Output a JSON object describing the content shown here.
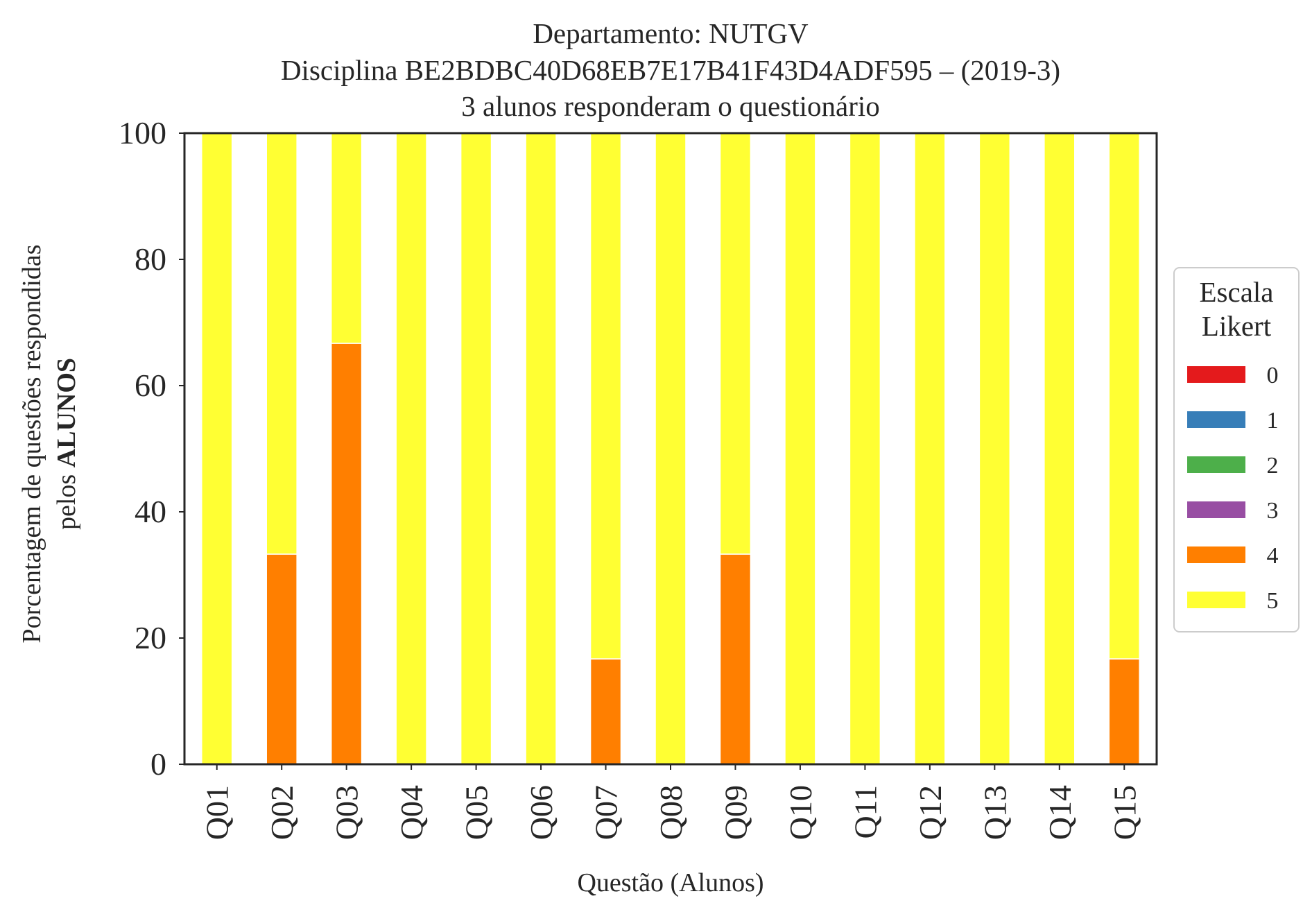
{
  "chart_data": {
    "type": "bar",
    "stacked": true,
    "title_lines": [
      "Departamento: NUTGV",
      "Disciplina BE2BDBC40D68EB7E17B41F43D4ADF595 – (2019-3)",
      "3 alunos responderam o questionário"
    ],
    "xlabel": "Questão (Alunos)",
    "ylabel_line1": "Porcentagem de questões respondidas",
    "ylabel_line2_normal": "pelos ",
    "ylabel_line2_bold": "ALUNOS",
    "ylim": [
      0,
      100
    ],
    "yticks": [
      "0",
      "20",
      "40",
      "60",
      "80",
      "100"
    ],
    "categories": [
      "Q01",
      "Q02",
      "Q03",
      "Q04",
      "Q05",
      "Q06",
      "Q07",
      "Q08",
      "Q09",
      "Q10",
      "Q11",
      "Q12",
      "Q13",
      "Q14",
      "Q15"
    ],
    "legend": {
      "title_lines": [
        "Escala",
        "Likert"
      ],
      "placement": "right-center, outside plot"
    },
    "series": [
      {
        "name": "0",
        "color": "#e41a1c",
        "values": [
          0,
          0,
          0,
          0,
          0,
          0,
          0,
          0,
          0,
          0,
          0,
          0,
          0,
          0,
          0
        ]
      },
      {
        "name": "1",
        "color": "#377eb8",
        "values": [
          0,
          0,
          0,
          0,
          0,
          0,
          0,
          0,
          0,
          0,
          0,
          0,
          0,
          0,
          0
        ]
      },
      {
        "name": "2",
        "color": "#4daf4a",
        "values": [
          0,
          0,
          0,
          0,
          0,
          0,
          0,
          0,
          0,
          0,
          0,
          0,
          0,
          0,
          0
        ]
      },
      {
        "name": "3",
        "color": "#984ea3",
        "values": [
          0,
          0,
          0,
          0,
          0,
          0,
          0,
          0,
          0,
          0,
          0,
          0,
          0,
          0,
          0
        ]
      },
      {
        "name": "4",
        "color": "#ff7f00",
        "values": [
          0,
          33.3,
          66.7,
          0,
          0,
          0,
          16.7,
          0,
          33.3,
          0,
          0,
          0,
          0,
          0,
          16.7
        ]
      },
      {
        "name": "5",
        "color": "#ffff33",
        "values": [
          100,
          66.7,
          33.3,
          100,
          100,
          100,
          83.3,
          100,
          66.7,
          100,
          100,
          100,
          100,
          100,
          83.3
        ]
      }
    ],
    "grid": false
  }
}
